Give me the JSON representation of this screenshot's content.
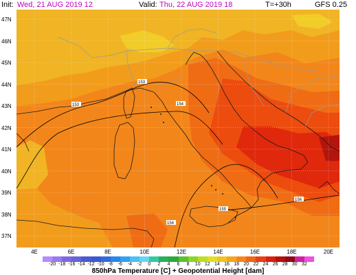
{
  "header": {
    "init_label": "Init:",
    "init_value": "Wed, 21 AUG 2019  12",
    "valid_label": "Valid:",
    "valid_value": "Thu, 22 AUG 2019  18",
    "lead": "T=+30h",
    "model": "GFS 0.25"
  },
  "lat_labels": [
    "47N",
    "46N",
    "45N",
    "44N",
    "43N",
    "42N",
    "41N",
    "40N",
    "39N",
    "38N",
    "37N"
  ],
  "lon_labels": [
    "4E",
    "6E",
    "8E",
    "10E",
    "12E",
    "14E",
    "16E",
    "18E",
    "20E"
  ],
  "map_labels": {
    "geo_a": "153",
    "geo_b": "153",
    "geo_c": "154",
    "geo_d": "155",
    "geo_e": "156",
    "geo_f": "154"
  },
  "legend": {
    "title": "850hPa Temperature [C] + Geopotential Height [dam]",
    "ticks": [
      "-20",
      "-18",
      "-16",
      "-14",
      "-12",
      "-10",
      "-8",
      "-6",
      "-4",
      "-2",
      "0",
      "2",
      "4",
      "6",
      "8",
      "10",
      "12",
      "14",
      "16",
      "18",
      "20",
      "22",
      "24",
      "26",
      "28",
      "30",
      "32"
    ],
    "colors": [
      "#b48cff",
      "#9a78f0",
      "#7f66e0",
      "#6464d8",
      "#4a5ad2",
      "#3a58d0",
      "#2f6be0",
      "#2a86ec",
      "#30a2f0",
      "#4ac0f4",
      "#64d6f4",
      "#34c8a0",
      "#26b060",
      "#2ea83a",
      "#5cc032",
      "#8cd428",
      "#bcde24",
      "#e0e020",
      "#f0c41e",
      "#f6a41e",
      "#f6861a",
      "#f26416",
      "#e84010",
      "#d8200e",
      "#b4100c",
      "#900818",
      "#d020a0",
      "#f050e0"
    ]
  },
  "colors": {
    "t14": "#f0b424",
    "t16": "#f29c1c",
    "t18": "#f2861a",
    "t20": "#f06c14",
    "t22": "#ec4c0e",
    "t24": "#e0280c",
    "t26": "#b4140c",
    "t12": "#f2cc28",
    "coast": "#1a1a1a",
    "border": "#9a9a9a",
    "contour": "#000000",
    "grid": "#ffffff"
  }
}
